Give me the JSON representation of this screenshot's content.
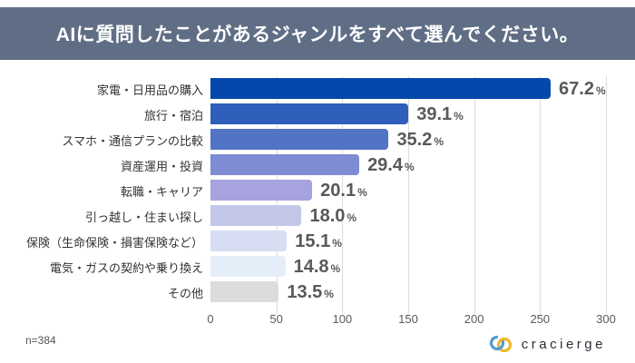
{
  "title_bar": {
    "text": "AIに質問したことがあるジャンルをすべて選んでください。",
    "background": "#5f6e85",
    "text_color": "#ffffff"
  },
  "chart_data": {
    "type": "bar",
    "orientation": "horizontal",
    "title": "AIに質問したことがあるジャンルをすべて選んでください。",
    "categories": [
      "家電・日用品の購入",
      "旅行・宿泊",
      "スマホ・通信プランの比較",
      "資産運用・投資",
      "転職・キャリア",
      "引っ越し・住まい探し",
      "保険（生命保険・損害保険など）",
      "電気・ガスの契約や乗り換え",
      "その他"
    ],
    "values_pct": [
      67.2,
      39.1,
      35.2,
      29.4,
      20.1,
      18.0,
      15.1,
      14.8,
      13.5
    ],
    "value_labels": [
      "67.2",
      "39.1",
      "35.2",
      "29.4",
      "20.1",
      "18.0",
      "15.1",
      "14.8",
      "13.5"
    ],
    "unit": "%",
    "sample_n": 384,
    "axis": {
      "xmin": 0,
      "xmax": 300,
      "ticks": [
        0,
        50,
        100,
        150,
        200,
        250,
        300
      ]
    },
    "bar_colors": [
      "#0448ac",
      "#2e5fba",
      "#5274c5",
      "#7e8cd3",
      "#a7a3df",
      "#c3c7ea",
      "#d7def3",
      "#e4eef9",
      "#dcdcdc"
    ],
    "grid": true,
    "legend": false,
    "gridline_color": "#dcdcdc"
  },
  "footer": {
    "sample_label": "n=384",
    "logo_text": "cracierge",
    "logo_icon_colors": {
      "blue": "#4d9bd6",
      "yellow": "#f0b929"
    }
  }
}
